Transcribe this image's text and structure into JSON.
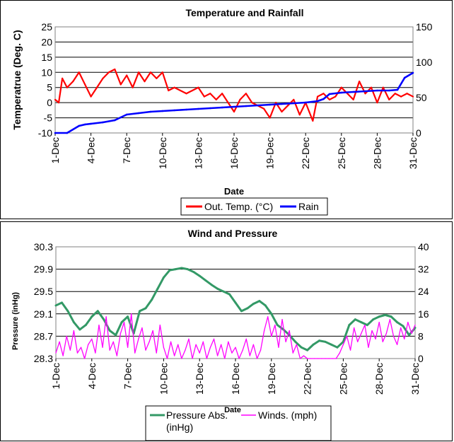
{
  "chart_data": [
    {
      "type": "line",
      "title": "Temperature and Rainfall",
      "xlabel": "Date",
      "ylabel": "Temperatrue (Deg. C)",
      "ylim": [
        -10,
        25
      ],
      "y2lim": [
        0,
        150
      ],
      "yticks": [
        "25",
        "20",
        "15",
        "10",
        "5",
        "0",
        "-5",
        "-10"
      ],
      "y2ticks": [
        "150",
        "100",
        "50",
        "0"
      ],
      "categories": [
        "1-Dec",
        "4-Dec",
        "7-Dec",
        "10-Dec",
        "13-Dec",
        "16-Dec",
        "19-Dec",
        "22-Dec",
        "25-Dec",
        "28-Dec",
        "31-Dec"
      ],
      "legend": [
        "Out. Temp. (°C)",
        "Rain"
      ],
      "grid": true,
      "series": [
        {
          "name": "Out. Temp. (°C)",
          "color": "#ff0000",
          "axis": "left",
          "x": [
            1,
            1.3,
            1.6,
            2,
            2.5,
            3,
            3.5,
            4,
            4.5,
            5,
            5.5,
            6,
            6.5,
            7,
            7.5,
            8,
            8.5,
            9,
            9.5,
            10,
            10.5,
            11,
            11.5,
            12,
            12.5,
            13,
            13.5,
            14,
            14.5,
            15,
            15.5,
            16,
            16.5,
            17,
            17.5,
            18,
            18.5,
            19,
            19.5,
            20,
            20.5,
            21,
            21.5,
            22,
            22.3,
            22.6,
            23,
            23.5,
            24,
            24.5,
            25,
            25.5,
            26,
            26.5,
            27,
            27.5,
            28,
            28.5,
            29,
            29.5,
            30,
            30.5,
            31
          ],
          "values": [
            1,
            0,
            8,
            5,
            7,
            10,
            6,
            2,
            5,
            8,
            10,
            11,
            6,
            9,
            5,
            10,
            7,
            10,
            8,
            10,
            4,
            5,
            4,
            3,
            4,
            5,
            2,
            3,
            1,
            3,
            0,
            -3,
            1,
            3,
            0,
            -1,
            -2,
            -5,
            0,
            -3,
            -1,
            1,
            -4,
            0,
            -3,
            -6,
            2,
            3,
            1,
            2,
            5,
            3,
            1,
            7,
            3,
            5,
            0,
            5,
            1,
            3,
            2,
            3,
            2
          ]
        },
        {
          "name": "Rain",
          "color": "#0000ff",
          "axis": "right",
          "x": [
            1,
            2,
            3,
            3.5,
            4,
            5,
            6,
            6.5,
            7,
            8,
            9,
            10,
            11,
            12,
            13,
            14,
            15,
            16,
            17,
            18,
            19,
            20,
            21,
            22,
            23,
            23.5,
            24,
            25,
            26,
            27,
            28,
            29,
            29.7,
            30.3,
            31
          ],
          "values": [
            0,
            0,
            10,
            12,
            13,
            15,
            18,
            22,
            26,
            28,
            30,
            31,
            32,
            33,
            34,
            35,
            36,
            37,
            38,
            39,
            40,
            41,
            42,
            43,
            45,
            48,
            55,
            57,
            58,
            59,
            60,
            60,
            61,
            78,
            85
          ]
        }
      ]
    },
    {
      "type": "line",
      "title": "Wind and Pressure",
      "xlabel": "Date",
      "ylabel": "Pressure (inHg)",
      "ylim": [
        28.3,
        30.3
      ],
      "y2lim": [
        0,
        40
      ],
      "yticks": [
        "30.3",
        "29.9",
        "29.5",
        "29.1",
        "28.7",
        "28.3"
      ],
      "y2ticks": [
        "40",
        "32",
        "24",
        "16",
        "8",
        "0"
      ],
      "categories": [
        "1-Dec",
        "4-Dec",
        "7-Dec",
        "10-Dec",
        "13-Dec",
        "16-Dec",
        "19-Dec",
        "22-Dec",
        "25-Dec",
        "28-Dec",
        "31-Dec"
      ],
      "legend": [
        "Pressure Abs. (inHg)",
        "Winds. (mph)"
      ],
      "grid": true,
      "series": [
        {
          "name": "Pressure Abs. (inHg)",
          "color": "#339966",
          "axis": "left",
          "x": [
            1,
            1.5,
            2,
            2.5,
            3,
            3.5,
            4,
            4.5,
            5,
            5.5,
            6,
            6.5,
            7,
            7.5,
            8,
            8.5,
            9,
            9.5,
            10,
            10.5,
            11,
            11.5,
            12,
            12.5,
            13,
            13.5,
            14,
            14.5,
            15,
            15.5,
            16,
            16.5,
            17,
            17.5,
            18,
            18.5,
            19,
            19.5,
            20,
            20.5,
            21,
            21.5,
            22,
            22.5,
            23,
            23.5,
            24,
            24.5,
            25,
            25.5,
            26,
            26.5,
            27,
            27.5,
            28,
            28.5,
            29,
            29.5,
            30,
            30.5,
            31
          ],
          "values": [
            29.25,
            29.3,
            29.15,
            28.95,
            28.82,
            28.9,
            29.05,
            29.15,
            29.0,
            28.8,
            28.72,
            28.95,
            29.05,
            28.75,
            29.15,
            29.2,
            29.35,
            29.55,
            29.75,
            29.88,
            29.9,
            29.92,
            29.9,
            29.85,
            29.78,
            29.7,
            29.62,
            29.55,
            29.5,
            29.45,
            29.3,
            29.15,
            29.2,
            29.28,
            29.33,
            29.25,
            29.1,
            28.9,
            28.82,
            28.72,
            28.6,
            28.5,
            28.45,
            28.55,
            28.62,
            28.6,
            28.55,
            28.5,
            28.6,
            28.9,
            29.0,
            28.95,
            28.9,
            29.0,
            29.05,
            29.08,
            29.05,
            28.95,
            28.88,
            28.72,
            28.85
          ]
        },
        {
          "name": "Winds. (mph)",
          "color": "#ff00ff",
          "axis": "right",
          "x": [
            1,
            1.3,
            1.6,
            1.9,
            2.2,
            2.5,
            2.8,
            3.1,
            3.4,
            3.7,
            4,
            4.3,
            4.6,
            4.9,
            5.2,
            5.5,
            5.8,
            6.1,
            6.4,
            6.7,
            7,
            7.3,
            7.6,
            7.9,
            8.2,
            8.5,
            8.8,
            9.1,
            9.4,
            9.7,
            10,
            10.3,
            10.6,
            10.9,
            11.2,
            11.5,
            11.8,
            12.1,
            12.4,
            12.7,
            13,
            13.3,
            13.6,
            13.9,
            14.2,
            14.5,
            14.8,
            15.1,
            15.4,
            15.7,
            16,
            16.3,
            16.6,
            16.9,
            17.2,
            17.5,
            17.8,
            18.1,
            18.4,
            18.7,
            19,
            19.3,
            19.6,
            19.9,
            20.2,
            20.5,
            20.8,
            21.1,
            21.4,
            21.7,
            22,
            22.3,
            22.6,
            22.9,
            23.2,
            23.5,
            23.8,
            24.1,
            24.4,
            24.7,
            25,
            25.3,
            25.6,
            25.9,
            26.2,
            26.5,
            26.8,
            27.1,
            27.4,
            27.7,
            28,
            28.3,
            28.6,
            28.9,
            29.2,
            29.5,
            29.8,
            30.1,
            30.4,
            30.7,
            31
          ],
          "values": [
            2,
            6,
            1,
            8,
            3,
            10,
            2,
            4,
            0,
            5,
            7,
            2,
            12,
            4,
            15,
            3,
            6,
            1,
            9,
            13,
            4,
            16,
            2,
            7,
            11,
            3,
            6,
            10,
            2,
            12,
            4,
            0,
            6,
            1,
            5,
            0,
            3,
            7,
            0,
            5,
            2,
            6,
            0,
            4,
            7,
            1,
            5,
            0,
            6,
            2,
            4,
            0,
            3,
            7,
            1,
            5,
            0,
            3,
            10,
            15,
            8,
            12,
            4,
            14,
            6,
            10,
            2,
            5,
            0,
            1,
            0,
            0,
            0,
            0,
            0,
            0,
            0,
            0,
            0,
            2,
            5,
            8,
            3,
            11,
            6,
            9,
            12,
            4,
            10,
            7,
            13,
            6,
            9,
            14,
            8,
            5,
            11,
            7,
            13,
            9,
            12
          ]
        }
      ]
    }
  ]
}
